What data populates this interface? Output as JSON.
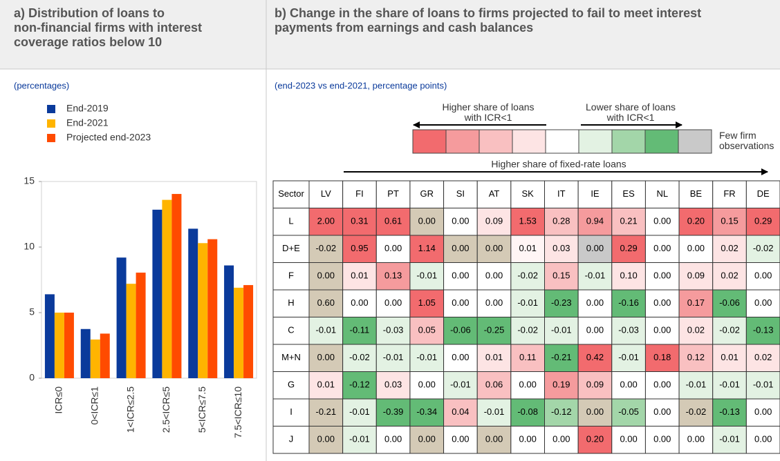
{
  "chart_data": [
    {
      "type": "bar",
      "title": "a) Distribution of loans to non-financial firms with interest coverage ratios below 10",
      "subtitle": "(percentages)",
      "categories": [
        "ICR≤0",
        "0<ICR≤1",
        "1<ICR≤2.5",
        "2.5<ICR≤5",
        "5<ICR≤7.5",
        "7.5<ICR≤10"
      ],
      "series": [
        {
          "name": "End-2019",
          "color": "#0a3a9b",
          "values": [
            6.4,
            3.75,
            9.2,
            12.85,
            11.4,
            8.6
          ]
        },
        {
          "name": "End-2021",
          "color": "#ffb400",
          "values": [
            5.0,
            2.95,
            7.2,
            13.6,
            10.3,
            6.9
          ]
        },
        {
          "name": "Projected end-2023",
          "color": "#ff4b00",
          "values": [
            5.0,
            3.4,
            8.05,
            14.05,
            10.6,
            7.1
          ]
        }
      ],
      "ylim": [
        0,
        15
      ],
      "yticks": [
        0,
        5,
        10,
        15
      ],
      "legend": "top-left"
    },
    {
      "type": "heatmap",
      "title": "b) Change in the share of loans to firms projected to fail to meet interest payments from earnings and cash balances",
      "subtitle": "(end-2023 vs end-2021, percentage points)",
      "legend_left": "Higher share of loans with ICR<1",
      "legend_right": "Lower share of loans with ICR<1",
      "legend_few": "Few firm observations",
      "legend_colors": [
        "#f26b6e",
        "#f59b9d",
        "#f9c0c1",
        "#fde4e4",
        "#ffffff",
        "#e3f2e3",
        "#a3d6a9",
        "#63bb76",
        "#c9c9c9"
      ],
      "axis_label": "Higher share of fixed-rate loans",
      "corner": "Sector",
      "columns": [
        "LV",
        "FI",
        "PT",
        "GR",
        "SI",
        "AT",
        "SK",
        "IT",
        "IE",
        "ES",
        "NL",
        "BE",
        "FR",
        "DE"
      ],
      "rows": [
        "L",
        "D+E",
        "F",
        "H",
        "C",
        "M+N",
        "G",
        "I",
        "J"
      ],
      "cells": [
        [
          "2.00",
          "0.31",
          "0.61",
          "0.00",
          "0.00",
          "0.09",
          "1.53",
          "0.28",
          "0.94",
          "0.21",
          "0.00",
          "0.20",
          "0.15",
          "0.29"
        ],
        [
          "-0.02",
          "0.95",
          "0.00",
          "1.14",
          "0.00",
          "0.00",
          "0.01",
          "0.03",
          "0.00",
          "0.29",
          "0.00",
          "0.00",
          "0.02",
          "-0.02"
        ],
        [
          "0.00",
          "0.01",
          "0.13",
          "-0.01",
          "0.00",
          "0.00",
          "-0.02",
          "0.15",
          "-0.01",
          "0.10",
          "0.00",
          "0.09",
          "0.02",
          "0.00"
        ],
        [
          "0.60",
          "0.00",
          "0.00",
          "1.05",
          "0.00",
          "0.00",
          "-0.01",
          "-0.23",
          "0.00",
          "-0.16",
          "0.00",
          "0.17",
          "-0.06",
          "0.00"
        ],
        [
          "-0.01",
          "-0.11",
          "-0.03",
          "0.05",
          "-0.06",
          "-0.25",
          "-0.02",
          "-0.01",
          "0.00",
          "-0.03",
          "0.00",
          "0.02",
          "-0.02",
          "-0.13"
        ],
        [
          "0.00",
          "-0.02",
          "-0.01",
          "-0.01",
          "0.00",
          "0.01",
          "0.11",
          "-0.21",
          "0.42",
          "-0.01",
          "0.18",
          "0.12",
          "0.01",
          "0.02"
        ],
        [
          "0.01",
          "-0.12",
          "0.03",
          "0.00",
          "-0.01",
          "0.06",
          "0.00",
          "0.19",
          "0.09",
          "0.00",
          "0.00",
          "-0.01",
          "-0.01",
          "-0.01"
        ],
        [
          "-0.21",
          "-0.01",
          "-0.39",
          "-0.34",
          "0.04",
          "-0.01",
          "-0.08",
          "-0.12",
          "0.00",
          "-0.05",
          "0.00",
          "-0.02",
          "-0.13",
          "0.00"
        ],
        [
          "0.00",
          "-0.01",
          "0.00",
          "0.00",
          "0.00",
          "0.00",
          "0.00",
          "0.00",
          "0.20",
          "0.00",
          "0.00",
          "0.00",
          "-0.01",
          "0.00"
        ]
      ],
      "colors": [
        [
          "#f26b6e",
          "#f26b6e",
          "#f26b6e",
          "#d4cab6",
          "#ffffff",
          "#fde4e4",
          "#f26b6e",
          "#f9c0c1",
          "#f59b9d",
          "#f9c0c1",
          "#ffffff",
          "#f26b6e",
          "#f59b9d",
          "#f26b6e"
        ],
        [
          "#d4cab6",
          "#f26b6e",
          "#ffffff",
          "#f26b6e",
          "#d4cab6",
          "#d4cab6",
          "#fff5f5",
          "#fde4e4",
          "#c9c9c9",
          "#f26b6e",
          "#ffffff",
          "#ffffff",
          "#fde4e4",
          "#e3f2e3"
        ],
        [
          "#d4cab6",
          "#fde4e4",
          "#f59b9d",
          "#e3f2e3",
          "#ffffff",
          "#ffffff",
          "#e3f2e3",
          "#f9c0c1",
          "#e3f2e3",
          "#fde4e4",
          "#ffffff",
          "#fde4e4",
          "#fde4e4",
          "#ffffff"
        ],
        [
          "#d4cab6",
          "#ffffff",
          "#ffffff",
          "#f26b6e",
          "#ffffff",
          "#ffffff",
          "#e3f2e3",
          "#63bb76",
          "#ffffff",
          "#63bb76",
          "#ffffff",
          "#f59b9d",
          "#63bb76",
          "#ffffff"
        ],
        [
          "#e3f2e3",
          "#63bb76",
          "#e3f2e3",
          "#f9c0c1",
          "#63bb76",
          "#63bb76",
          "#e3f2e3",
          "#e3f2e3",
          "#ffffff",
          "#e3f2e3",
          "#ffffff",
          "#fde4e4",
          "#e3f2e3",
          "#63bb76"
        ],
        [
          "#d4cab6",
          "#e3f2e3",
          "#e3f2e3",
          "#e3f2e3",
          "#ffffff",
          "#fde4e4",
          "#f9c0c1",
          "#63bb76",
          "#f26b6e",
          "#e3f2e3",
          "#f26b6e",
          "#f9c0c1",
          "#fde4e4",
          "#fde4e4"
        ],
        [
          "#fde4e4",
          "#63bb76",
          "#fde4e4",
          "#ffffff",
          "#e3f2e3",
          "#f9c0c1",
          "#ffffff",
          "#f59b9d",
          "#f9c0c1",
          "#ffffff",
          "#ffffff",
          "#e3f2e3",
          "#e3f2e3",
          "#e3f2e3"
        ],
        [
          "#d4cab6",
          "#e3f2e3",
          "#63bb76",
          "#63bb76",
          "#f9c0c1",
          "#e3f2e3",
          "#63bb76",
          "#a3d6a9",
          "#d4cab6",
          "#a3d6a9",
          "#ffffff",
          "#d4cab6",
          "#63bb76",
          "#ffffff"
        ],
        [
          "#d4cab6",
          "#e3f2e3",
          "#ffffff",
          "#d4cab6",
          "#ffffff",
          "#d4cab6",
          "#ffffff",
          "#ffffff",
          "#f26b6e",
          "#ffffff",
          "#ffffff",
          "#ffffff",
          "#e3f2e3",
          "#ffffff"
        ]
      ]
    }
  ]
}
